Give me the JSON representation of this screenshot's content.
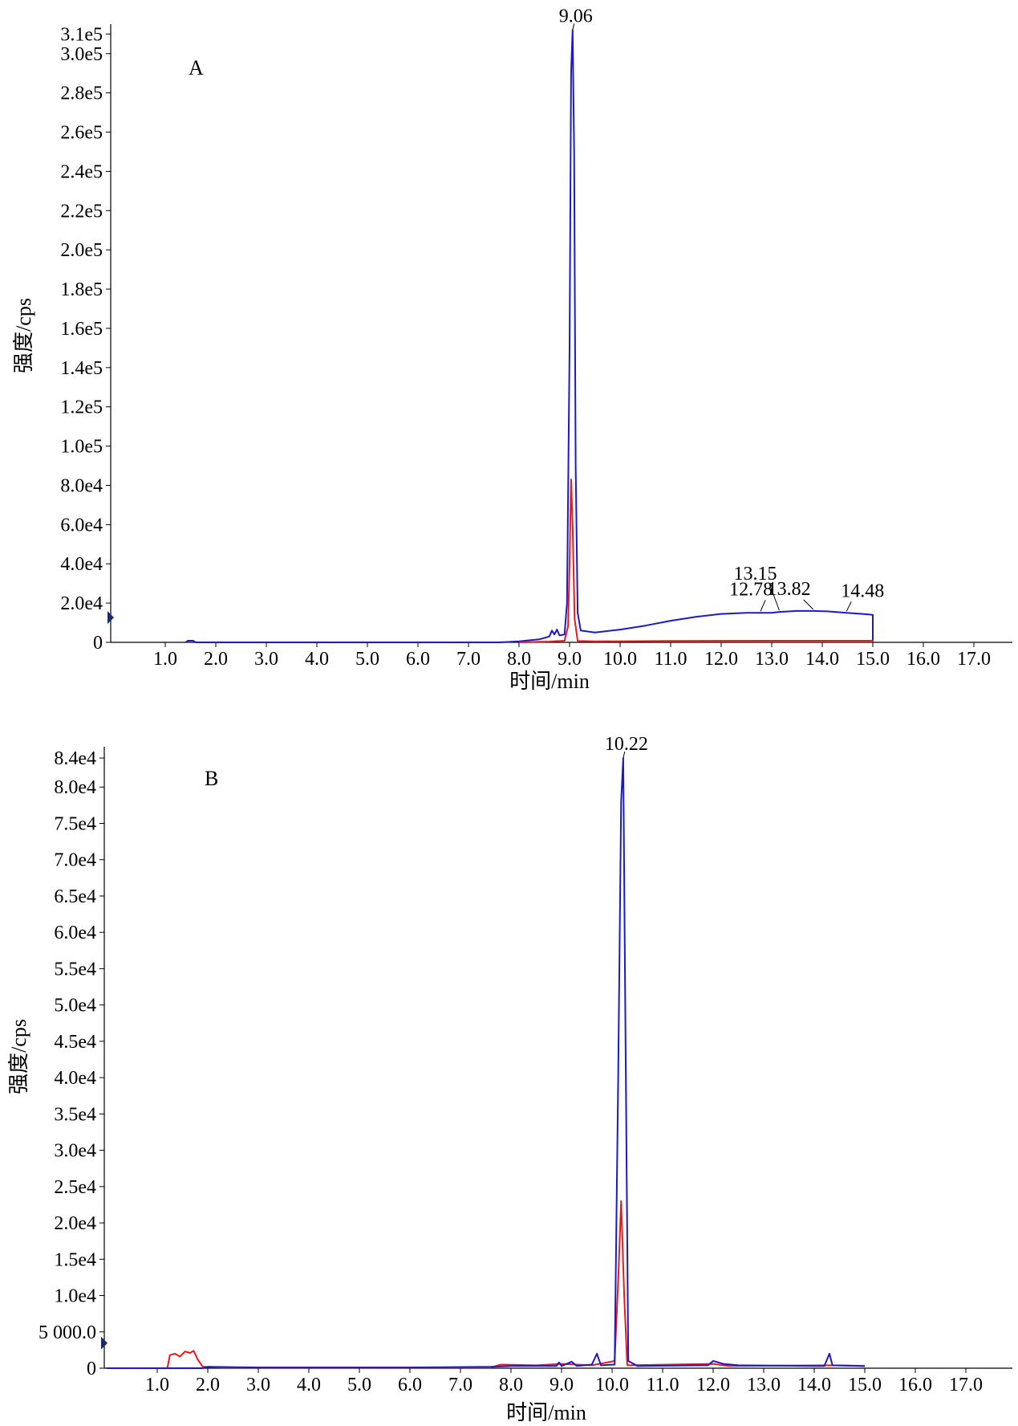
{
  "chart_data": [
    {
      "panel": "A",
      "type": "line",
      "xlabel": "时间/min",
      "ylabel": "强度/cps",
      "xlim": [
        0,
        18.2
      ],
      "ylim": [
        0,
        313000
      ],
      "xticks": [
        {
          "v": 1.0,
          "label": "1.0"
        },
        {
          "v": 2.0,
          "label": "2.0"
        },
        {
          "v": 3.0,
          "label": "3.0"
        },
        {
          "v": 4.0,
          "label": "4.0"
        },
        {
          "v": 5.0,
          "label": "5.0"
        },
        {
          "v": 6.0,
          "label": "6.0"
        },
        {
          "v": 7.0,
          "label": "7.0"
        },
        {
          "v": 8.0,
          "label": "8.0"
        },
        {
          "v": 9.0,
          "label": "9.0"
        },
        {
          "v": 10.0,
          "label": "10.0"
        },
        {
          "v": 11.0,
          "label": "11.0"
        },
        {
          "v": 12.0,
          "label": "12.0"
        },
        {
          "v": 13.0,
          "label": "13.0"
        },
        {
          "v": 14.0,
          "label": "14.0"
        },
        {
          "v": 15.0,
          "label": "15.0"
        },
        {
          "v": 16.0,
          "label": "16.0"
        },
        {
          "v": 17.0,
          "label": "17.0"
        }
      ],
      "yticks": [
        {
          "v": 0,
          "label": "0"
        },
        {
          "v": 20000,
          "label": "2.0e4"
        },
        {
          "v": 40000,
          "label": "4.0e4"
        },
        {
          "v": 60000,
          "label": "6.0e4"
        },
        {
          "v": 80000,
          "label": "8.0e4"
        },
        {
          "v": 100000,
          "label": "1.0e5"
        },
        {
          "v": 120000,
          "label": "1.2e5"
        },
        {
          "v": 140000,
          "label": "1.4e5"
        },
        {
          "v": 160000,
          "label": "1.6e5"
        },
        {
          "v": 180000,
          "label": "1.8e5"
        },
        {
          "v": 200000,
          "label": "2.0e5"
        },
        {
          "v": 220000,
          "label": "2.2e5"
        },
        {
          "v": 240000,
          "label": "2.4e5"
        },
        {
          "v": 260000,
          "label": "2.6e5"
        },
        {
          "v": 280000,
          "label": "2.8e5"
        },
        {
          "v": 300000,
          "label": "3.0e5"
        },
        {
          "v": 310000,
          "label": "3.1e5"
        }
      ],
      "series": [
        {
          "color": "#1a1acc",
          "points": [
            [
              1.4,
              0
            ],
            [
              1.45,
              800
            ],
            [
              1.55,
              800
            ],
            [
              1.6,
              0
            ],
            [
              7.6,
              0
            ],
            [
              8.0,
              500
            ],
            [
              8.4,
              1500
            ],
            [
              8.6,
              3000
            ],
            [
              8.65,
              6000
            ],
            [
              8.7,
              4000
            ],
            [
              8.75,
              6500
            ],
            [
              8.8,
              3500
            ],
            [
              8.9,
              4000
            ],
            [
              8.95,
              20000
            ],
            [
              9.0,
              150000
            ],
            [
              9.03,
              290000
            ],
            [
              9.06,
              312000
            ],
            [
              9.09,
              250000
            ],
            [
              9.12,
              90000
            ],
            [
              9.16,
              15000
            ],
            [
              9.22,
              6000
            ],
            [
              9.5,
              5000
            ],
            [
              10.0,
              6500
            ],
            [
              10.5,
              8500
            ],
            [
              11.0,
              11000
            ],
            [
              11.5,
              13000
            ],
            [
              12.0,
              14500
            ],
            [
              12.5,
              15000
            ],
            [
              12.78,
              15000
            ],
            [
              13.0,
              15000
            ],
            [
              13.15,
              15500
            ],
            [
              13.5,
              16000
            ],
            [
              13.82,
              16000
            ],
            [
              14.1,
              15800
            ],
            [
              14.48,
              15000
            ],
            [
              14.8,
              14500
            ],
            [
              15.0,
              14000
            ],
            [
              15.0,
              0
            ]
          ]
        },
        {
          "color": "#e81a1a",
          "points": [
            [
              8.0,
              0
            ],
            [
              8.6,
              400
            ],
            [
              8.9,
              800
            ],
            [
              8.97,
              8000
            ],
            [
              9.0,
              40000
            ],
            [
              9.03,
              83000
            ],
            [
              9.06,
              60000
            ],
            [
              9.1,
              12000
            ],
            [
              9.16,
              700
            ],
            [
              9.5,
              500
            ],
            [
              11.0,
              700
            ],
            [
              13.0,
              800
            ],
            [
              15.0,
              800
            ],
            [
              15.0,
              0
            ]
          ]
        }
      ],
      "peak_labels": [
        {
          "x": 9.06,
          "y": 312000,
          "label": "9.06"
        },
        {
          "x": 12.78,
          "y": 15000,
          "label": "12.78"
        },
        {
          "x": 13.15,
          "y": 15500,
          "label": "13.15"
        },
        {
          "x": 13.82,
          "y": 16000,
          "label": "13.82"
        },
        {
          "x": 14.48,
          "y": 15000,
          "label": "14.48"
        }
      ]
    },
    {
      "panel": "B",
      "type": "line",
      "xlabel": "时间/min",
      "ylabel": "强度/cps",
      "xlim": [
        0,
        18.2
      ],
      "ylim": [
        0,
        85000
      ],
      "xticks": [
        {
          "v": 1.0,
          "label": "1.0"
        },
        {
          "v": 2.0,
          "label": "2.0"
        },
        {
          "v": 3.0,
          "label": "3.0"
        },
        {
          "v": 4.0,
          "label": "4.0"
        },
        {
          "v": 5.0,
          "label": "5.0"
        },
        {
          "v": 6.0,
          "label": "6.0"
        },
        {
          "v": 7.0,
          "label": "7.0"
        },
        {
          "v": 8.0,
          "label": "8.0"
        },
        {
          "v": 9.0,
          "label": "9.0"
        },
        {
          "v": 10.0,
          "label": "10.0"
        },
        {
          "v": 11.0,
          "label": "11.0"
        },
        {
          "v": 12.0,
          "label": "12.0"
        },
        {
          "v": 13.0,
          "label": "13.0"
        },
        {
          "v": 14.0,
          "label": "14.0"
        },
        {
          "v": 15.0,
          "label": "15.0"
        },
        {
          "v": 16.0,
          "label": "16.0"
        },
        {
          "v": 17.0,
          "label": "17.0"
        }
      ],
      "yticks": [
        {
          "v": 0,
          "label": "0"
        },
        {
          "v": 5000,
          "label": "5 000.0"
        },
        {
          "v": 10000,
          "label": "1.0e4"
        },
        {
          "v": 15000,
          "label": "1.5e4"
        },
        {
          "v": 20000,
          "label": "2.0e4"
        },
        {
          "v": 25000,
          "label": "2.5e4"
        },
        {
          "v": 30000,
          "label": "3.0e4"
        },
        {
          "v": 35000,
          "label": "3.5e4"
        },
        {
          "v": 40000,
          "label": "4.0e4"
        },
        {
          "v": 45000,
          "label": "4.5e4"
        },
        {
          "v": 50000,
          "label": "5.0e4"
        },
        {
          "v": 55000,
          "label": "5.5e4"
        },
        {
          "v": 60000,
          "label": "6.0e4"
        },
        {
          "v": 65000,
          "label": "6.5e4"
        },
        {
          "v": 70000,
          "label": "7.0e4"
        },
        {
          "v": 75000,
          "label": "7.5e4"
        },
        {
          "v": 80000,
          "label": "8.0e4"
        },
        {
          "v": 84000,
          "label": "8.4e4"
        }
      ],
      "series": [
        {
          "color": "#e81a1a",
          "points": [
            [
              0.0,
              0
            ],
            [
              1.2,
              0
            ],
            [
              1.25,
              1800
            ],
            [
              1.35,
              2000
            ],
            [
              1.45,
              1600
            ],
            [
              1.55,
              2300
            ],
            [
              1.65,
              2100
            ],
            [
              1.72,
              2400
            ],
            [
              1.8,
              1200
            ],
            [
              1.9,
              200
            ],
            [
              2.3,
              100
            ],
            [
              7.6,
              100
            ],
            [
              7.8,
              500
            ],
            [
              8.5,
              400
            ],
            [
              9.0,
              600
            ],
            [
              9.6,
              400
            ],
            [
              10.05,
              1000
            ],
            [
              10.12,
              12000
            ],
            [
              10.18,
              23000
            ],
            [
              10.24,
              10000
            ],
            [
              10.3,
              400
            ],
            [
              12.0,
              600
            ],
            [
              12.3,
              300
            ],
            [
              14.3,
              400
            ],
            [
              15.0,
              300
            ]
          ]
        },
        {
          "color": "#1a1acc",
          "points": [
            [
              0.0,
              0
            ],
            [
              1.9,
              0
            ],
            [
              2.0,
              200
            ],
            [
              3.0,
              100
            ],
            [
              6.0,
              100
            ],
            [
              7.6,
              200
            ],
            [
              8.0,
              300
            ],
            [
              8.9,
              300
            ],
            [
              8.95,
              800
            ],
            [
              9.0,
              300
            ],
            [
              9.2,
              900
            ],
            [
              9.3,
              300
            ],
            [
              9.6,
              500
            ],
            [
              9.7,
              2000
            ],
            [
              9.78,
              400
            ],
            [
              10.05,
              500
            ],
            [
              10.12,
              40000
            ],
            [
              10.18,
              78000
            ],
            [
              10.22,
              84000
            ],
            [
              10.26,
              50000
            ],
            [
              10.32,
              1000
            ],
            [
              10.5,
              300
            ],
            [
              11.9,
              400
            ],
            [
              12.0,
              1000
            ],
            [
              12.2,
              600
            ],
            [
              12.5,
              400
            ],
            [
              14.2,
              300
            ],
            [
              14.3,
              2000
            ],
            [
              14.36,
              400
            ],
            [
              15.0,
              300
            ]
          ]
        }
      ],
      "peak_labels": [
        {
          "x": 10.22,
          "y": 84000,
          "label": "10.22"
        }
      ]
    }
  ]
}
